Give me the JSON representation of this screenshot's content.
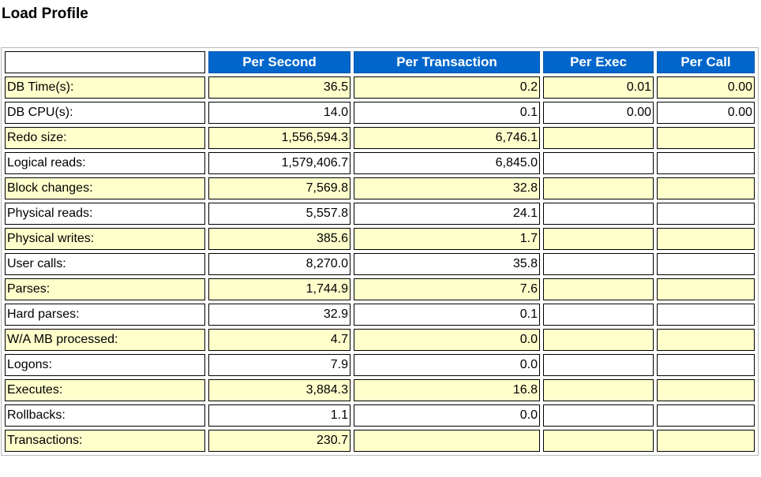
{
  "title": "Load Profile",
  "colors": {
    "header_bg": "#0066cc",
    "header_text": "#ffffff",
    "shaded_row": "#ffffcc",
    "plain_row": "#ffffff"
  },
  "table": {
    "columns": [
      "",
      "Per Second",
      "Per Transaction",
      "Per Exec",
      "Per Call"
    ],
    "rows": [
      {
        "name": "DB Time(s):",
        "per_second": "36.5",
        "per_transaction": "0.2",
        "per_exec": "0.01",
        "per_call": "0.00"
      },
      {
        "name": "DB CPU(s):",
        "per_second": "14.0",
        "per_transaction": "0.1",
        "per_exec": "0.00",
        "per_call": "0.00"
      },
      {
        "name": "Redo size:",
        "per_second": "1,556,594.3",
        "per_transaction": "6,746.1",
        "per_exec": "",
        "per_call": ""
      },
      {
        "name": "Logical reads:",
        "per_second": "1,579,406.7",
        "per_transaction": "6,845.0",
        "per_exec": "",
        "per_call": ""
      },
      {
        "name": "Block changes:",
        "per_second": "7,569.8",
        "per_transaction": "32.8",
        "per_exec": "",
        "per_call": ""
      },
      {
        "name": "Physical reads:",
        "per_second": "5,557.8",
        "per_transaction": "24.1",
        "per_exec": "",
        "per_call": ""
      },
      {
        "name": "Physical writes:",
        "per_second": "385.6",
        "per_transaction": "1.7",
        "per_exec": "",
        "per_call": ""
      },
      {
        "name": "User calls:",
        "per_second": "8,270.0",
        "per_transaction": "35.8",
        "per_exec": "",
        "per_call": ""
      },
      {
        "name": "Parses:",
        "per_second": "1,744.9",
        "per_transaction": "7.6",
        "per_exec": "",
        "per_call": ""
      },
      {
        "name": "Hard parses:",
        "per_second": "32.9",
        "per_transaction": "0.1",
        "per_exec": "",
        "per_call": ""
      },
      {
        "name": "W/A MB processed:",
        "per_second": "4.7",
        "per_transaction": "0.0",
        "per_exec": "",
        "per_call": ""
      },
      {
        "name": "Logons:",
        "per_second": "7.9",
        "per_transaction": "0.0",
        "per_exec": "",
        "per_call": ""
      },
      {
        "name": "Executes:",
        "per_second": "3,884.3",
        "per_transaction": "16.8",
        "per_exec": "",
        "per_call": ""
      },
      {
        "name": "Rollbacks:",
        "per_second": "1.1",
        "per_transaction": "0.0",
        "per_exec": "",
        "per_call": ""
      },
      {
        "name": "Transactions:",
        "per_second": "230.7",
        "per_transaction": "",
        "per_exec": "",
        "per_call": ""
      }
    ]
  }
}
